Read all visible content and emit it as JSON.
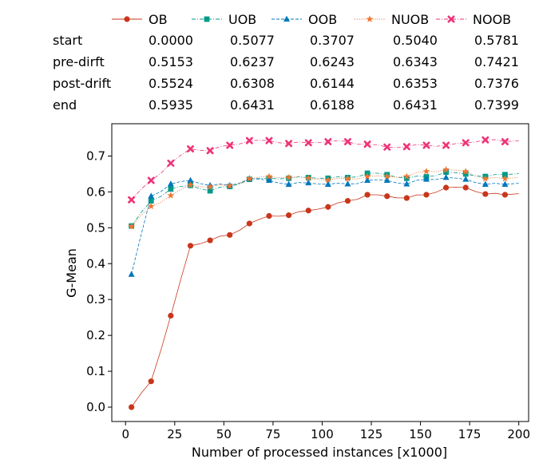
{
  "chart_data": {
    "type": "line",
    "xlabel": "Number of processed instances [x1000]",
    "ylabel": "G-Mean",
    "xlim": [
      -7,
      205
    ],
    "ylim": [
      -0.04,
      0.79
    ],
    "xticks": [
      0,
      25,
      50,
      75,
      100,
      125,
      150,
      175,
      200
    ],
    "xtick_labels": [
      "0",
      "25",
      "50",
      "75",
      "100",
      "125",
      "150",
      "175",
      "200"
    ],
    "yticks": [
      0.0,
      0.1,
      0.2,
      0.3,
      0.4,
      0.5,
      0.6,
      0.7
    ],
    "ytick_labels": [
      "0.0",
      "0.1",
      "0.2",
      "0.3",
      "0.4",
      "0.5",
      "0.6",
      "0.7"
    ],
    "grid": false,
    "legend_position": "top, above plot",
    "marker_x": [
      3,
      13,
      23,
      33,
      43,
      53,
      63,
      73,
      83,
      93,
      103,
      113,
      123,
      133,
      143,
      153,
      163,
      173,
      183,
      193
    ],
    "series": [
      {
        "name": "OB",
        "color": "#c8361b",
        "marker": "circle",
        "linestyle": "solid",
        "values": [
          0.0,
          0.072,
          0.255,
          0.45,
          0.465,
          0.48,
          0.512,
          0.533,
          0.535,
          0.548,
          0.558,
          0.575,
          0.592,
          0.588,
          0.583,
          0.592,
          0.612,
          0.612,
          0.594,
          0.592
        ]
      },
      {
        "name": "UOB",
        "color": "#009988",
        "marker": "square",
        "linestyle": "dashdot",
        "values": [
          0.505,
          0.575,
          0.608,
          0.618,
          0.603,
          0.615,
          0.635,
          0.638,
          0.638,
          0.64,
          0.638,
          0.64,
          0.652,
          0.648,
          0.638,
          0.642,
          0.655,
          0.65,
          0.643,
          0.648
        ]
      },
      {
        "name": "OOB",
        "color": "#0077bb",
        "marker": "triangle",
        "linestyle": "dashed",
        "values": [
          0.37,
          0.588,
          0.622,
          0.632,
          0.618,
          0.618,
          0.637,
          0.632,
          0.621,
          0.625,
          0.621,
          0.622,
          0.632,
          0.632,
          0.622,
          0.635,
          0.64,
          0.635,
          0.621,
          0.621
        ]
      },
      {
        "name": "NUOB",
        "color": "#ee7733",
        "marker": "star",
        "linestyle": "dotted",
        "values": [
          0.504,
          0.56,
          0.59,
          0.619,
          0.614,
          0.617,
          0.637,
          0.643,
          0.64,
          0.638,
          0.633,
          0.637,
          0.643,
          0.643,
          0.643,
          0.657,
          0.662,
          0.657,
          0.637,
          0.637
        ]
      },
      {
        "name": "NOOB",
        "color": "#ee3377",
        "marker": "x",
        "linestyle": "dashdot",
        "values": [
          0.578,
          0.632,
          0.68,
          0.72,
          0.715,
          0.73,
          0.743,
          0.743,
          0.735,
          0.737,
          0.74,
          0.74,
          0.733,
          0.725,
          0.726,
          0.73,
          0.73,
          0.737,
          0.745,
          0.74
        ]
      }
    ]
  },
  "table": {
    "rows": [
      {
        "label": "start",
        "values": [
          "0.0000",
          "0.5077",
          "0.3707",
          "0.5040",
          "0.5781"
        ]
      },
      {
        "label": "pre-dirft",
        "values": [
          "0.5153",
          "0.6237",
          "0.6243",
          "0.6343",
          "0.7421"
        ]
      },
      {
        "label": "post-drift",
        "values": [
          "0.5524",
          "0.6308",
          "0.6144",
          "0.6353",
          "0.7376"
        ]
      },
      {
        "label": "end",
        "values": [
          "0.5935",
          "0.6431",
          "0.6188",
          "0.6431",
          "0.7399"
        ]
      }
    ]
  }
}
